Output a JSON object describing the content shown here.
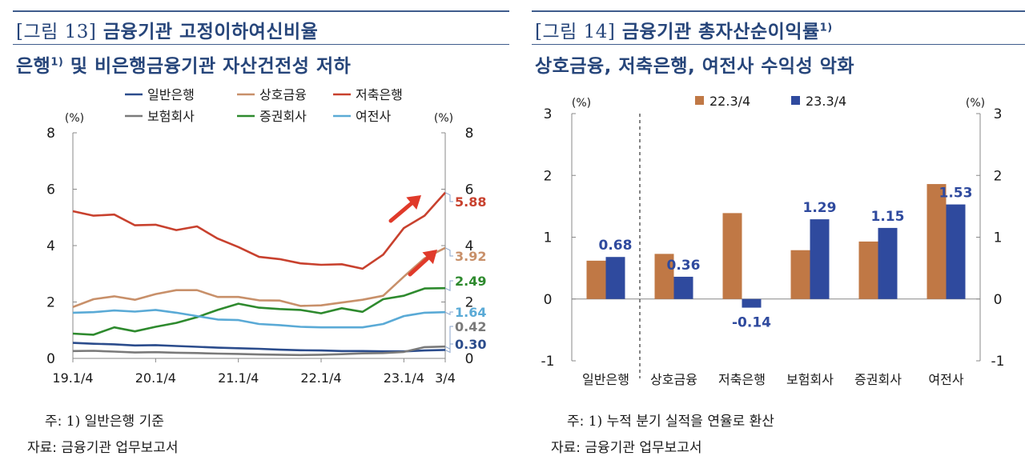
{
  "left": {
    "title_line1_prefix": "[그림 13]",
    "title_line1_text": "금융기관 고정이하여신비율",
    "title_line2_text": "은행",
    "title_line2_sup": "1)",
    "title_line2_rest": "및 비은행금융기관 자산건전성 저하",
    "note_label": "주:",
    "note_num": "1)",
    "note_text": "일반은행 기준",
    "source": "자료: 금융기관 업무보고서"
  },
  "right": {
    "title_line1_prefix": "[그림 14]",
    "title_line1_text": "금융기관 총자산순이익률",
    "title_line1_sup": "1)",
    "title_line2_text": "상호금융, 저축은행, 여전사 수익성 악화",
    "note_label": "주:",
    "note_num": "1)",
    "note_text": "누적 분기 실적을 연율로 환산",
    "source": "자료: 금융기관 업무보고서"
  },
  "colors": {
    "일반은행": "#2b4c8c",
    "상호금융": "#c8906a",
    "저축은행": "#c8412e",
    "보험회사": "#7a7a7a",
    "증권회사": "#2e8a2e",
    "여전사": "#5aaad6",
    "bar_22": "#c07845",
    "bar_23": "#2f4a9e",
    "arrow": "#e03a2a"
  },
  "chart_data": [
    {
      "type": "line",
      "title": "",
      "xlabel": "",
      "ylabel": "(%)",
      "ylabel_right": "(%)",
      "ylim": [
        0,
        8
      ],
      "yticks": [
        0,
        2,
        4,
        6,
        8
      ],
      "x": [
        "19.1/4",
        "19.2/4",
        "19.3/4",
        "19.4/4",
        "20.1/4",
        "20.2/4",
        "20.3/4",
        "20.4/4",
        "21.1/4",
        "21.2/4",
        "21.3/4",
        "21.4/4",
        "22.1/4",
        "22.2/4",
        "22.3/4",
        "22.4/4",
        "23.1/4",
        "23.2/4",
        "23.3/4"
      ],
      "xtick_labels": [
        "19.1/4",
        "20.1/4",
        "21.1/4",
        "22.1/4",
        "23.1/4",
        "3/4"
      ],
      "xtick_index": [
        0,
        4,
        8,
        12,
        16,
        18
      ],
      "series": [
        {
          "name": "일반은행",
          "values": [
            0.55,
            0.52,
            0.5,
            0.46,
            0.47,
            0.44,
            0.41,
            0.38,
            0.36,
            0.34,
            0.31,
            0.29,
            0.28,
            0.26,
            0.26,
            0.25,
            0.25,
            0.28,
            0.3
          ],
          "end_label": "0.30"
        },
        {
          "name": "상호금융",
          "values": [
            1.82,
            2.1,
            2.2,
            2.08,
            2.28,
            2.42,
            2.42,
            2.18,
            2.18,
            2.06,
            2.05,
            1.86,
            1.88,
            1.98,
            2.08,
            2.22,
            2.9,
            3.55,
            3.92
          ],
          "end_label": "3.92"
        },
        {
          "name": "저축은행",
          "values": [
            5.22,
            5.06,
            5.1,
            4.72,
            4.74,
            4.55,
            4.68,
            4.25,
            3.95,
            3.6,
            3.52,
            3.37,
            3.32,
            3.34,
            3.18,
            3.68,
            4.62,
            5.06,
            5.88
          ],
          "end_label": "5.88"
        },
        {
          "name": "보험회사",
          "values": [
            0.26,
            0.27,
            0.24,
            0.21,
            0.22,
            0.2,
            0.19,
            0.17,
            0.16,
            0.14,
            0.13,
            0.12,
            0.13,
            0.15,
            0.18,
            0.19,
            0.23,
            0.4,
            0.42
          ],
          "end_label": "0.42"
        },
        {
          "name": "증권회사",
          "values": [
            0.88,
            0.84,
            1.1,
            0.96,
            1.12,
            1.26,
            1.46,
            1.72,
            1.94,
            1.8,
            1.75,
            1.72,
            1.6,
            1.78,
            1.65,
            2.1,
            2.22,
            2.48,
            2.49
          ],
          "end_label": "2.49"
        },
        {
          "name": "여전사",
          "values": [
            1.62,
            1.64,
            1.7,
            1.66,
            1.72,
            1.62,
            1.5,
            1.38,
            1.36,
            1.22,
            1.18,
            1.12,
            1.1,
            1.1,
            1.1,
            1.22,
            1.5,
            1.62,
            1.64
          ],
          "end_label": "1.64"
        }
      ],
      "legend": "top"
    },
    {
      "type": "bar",
      "title": "",
      "ylabel": "(%)",
      "ylabel_right": "(%)",
      "ylim": [
        -1,
        3
      ],
      "yticks": [
        -1,
        0,
        1,
        2,
        3
      ],
      "categories": [
        "일반은행",
        "상호금융",
        "저축은행",
        "보험회사",
        "증권회사",
        "여전사"
      ],
      "series": [
        {
          "name": "22.3/4",
          "values": [
            0.62,
            0.73,
            1.39,
            0.79,
            0.93,
            1.86
          ]
        },
        {
          "name": "23.3/4",
          "values": [
            0.68,
            0.36,
            -0.14,
            1.29,
            1.15,
            1.53
          ],
          "data_labels": [
            "0.68",
            "0.36",
            "-0.14",
            "1.29",
            "1.15",
            "1.53"
          ]
        }
      ],
      "legend": "top"
    }
  ]
}
